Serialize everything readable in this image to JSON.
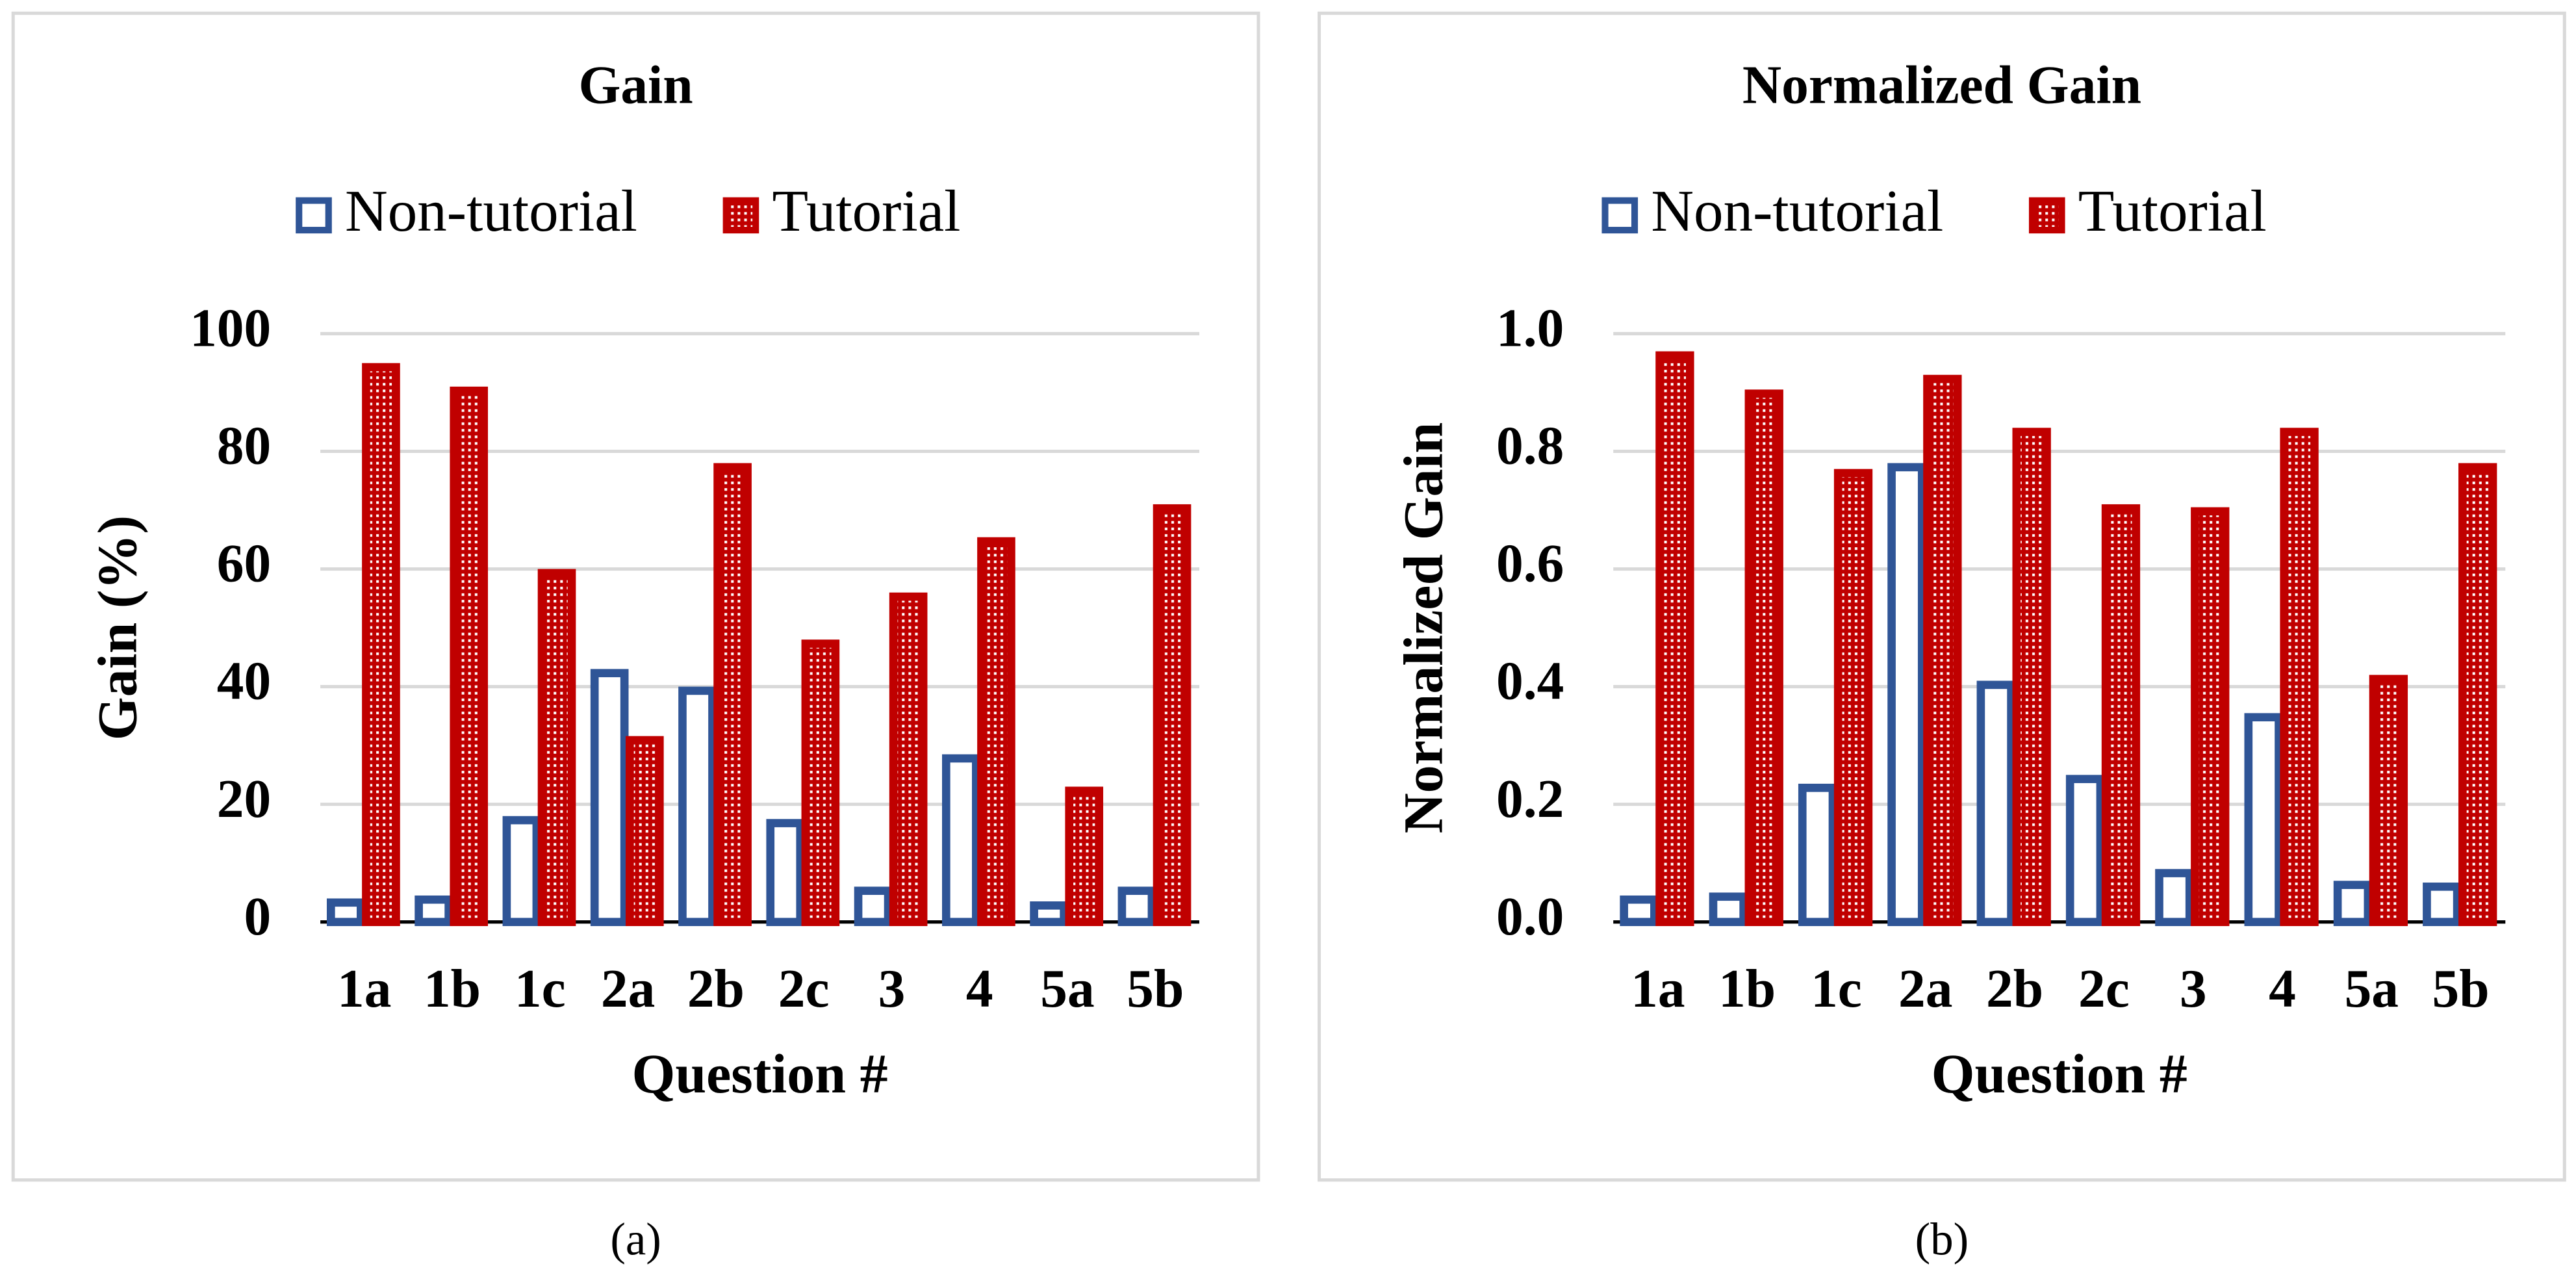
{
  "chart_data": [
    {
      "type": "bar",
      "title": "Gain",
      "caption": "(a)",
      "x_label": "Question #",
      "y_label": "Gain (%)",
      "categories": [
        "1a",
        "1b",
        "1c",
        "2a",
        "2b",
        "2c",
        "3",
        "4",
        "5a",
        "5b"
      ],
      "series": [
        {
          "name": "Non-tutorial",
          "color": "#2f5597",
          "style": "outline",
          "values": [
            4,
            4.5,
            18,
            43,
            40,
            17.5,
            6,
            28.5,
            3.5,
            6
          ]
        },
        {
          "name": "Tutorial",
          "color": "#c00000",
          "style": "pattern",
          "values": [
            95,
            91,
            60,
            31.6,
            78,
            48,
            56,
            65.4,
            23,
            71
          ]
        }
      ],
      "ylim": [
        0,
        100
      ],
      "yticks": [
        0,
        20,
        40,
        60,
        80,
        100
      ],
      "grid": true
    },
    {
      "type": "bar",
      "title": "Normalized Gain",
      "caption": "(b)",
      "x_label": "Question #",
      "y_label": "Normalized Gain",
      "categories": [
        "1a",
        "1b",
        "1c",
        "2a",
        "2b",
        "2c",
        "3",
        "4",
        "5a",
        "5b"
      ],
      "series": [
        {
          "name": "Non-tutorial",
          "color": "#2f5597",
          "style": "outline",
          "values": [
            0.045,
            0.05,
            0.235,
            0.78,
            0.41,
            0.25,
            0.09,
            0.355,
            0.07,
            0.067
          ]
        },
        {
          "name": "Tutorial",
          "color": "#c00000",
          "style": "pattern",
          "values": [
            0.97,
            0.905,
            0.77,
            0.93,
            0.84,
            0.71,
            0.705,
            0.84,
            0.42,
            0.78
          ]
        }
      ],
      "ylim": [
        0,
        1
      ],
      "yticks": [
        {
          "value": 0,
          "label": "0.0"
        },
        0.2,
        0.4,
        0.6,
        0.8,
        {
          "value": 1,
          "label": "1.0"
        }
      ],
      "grid": true
    }
  ]
}
